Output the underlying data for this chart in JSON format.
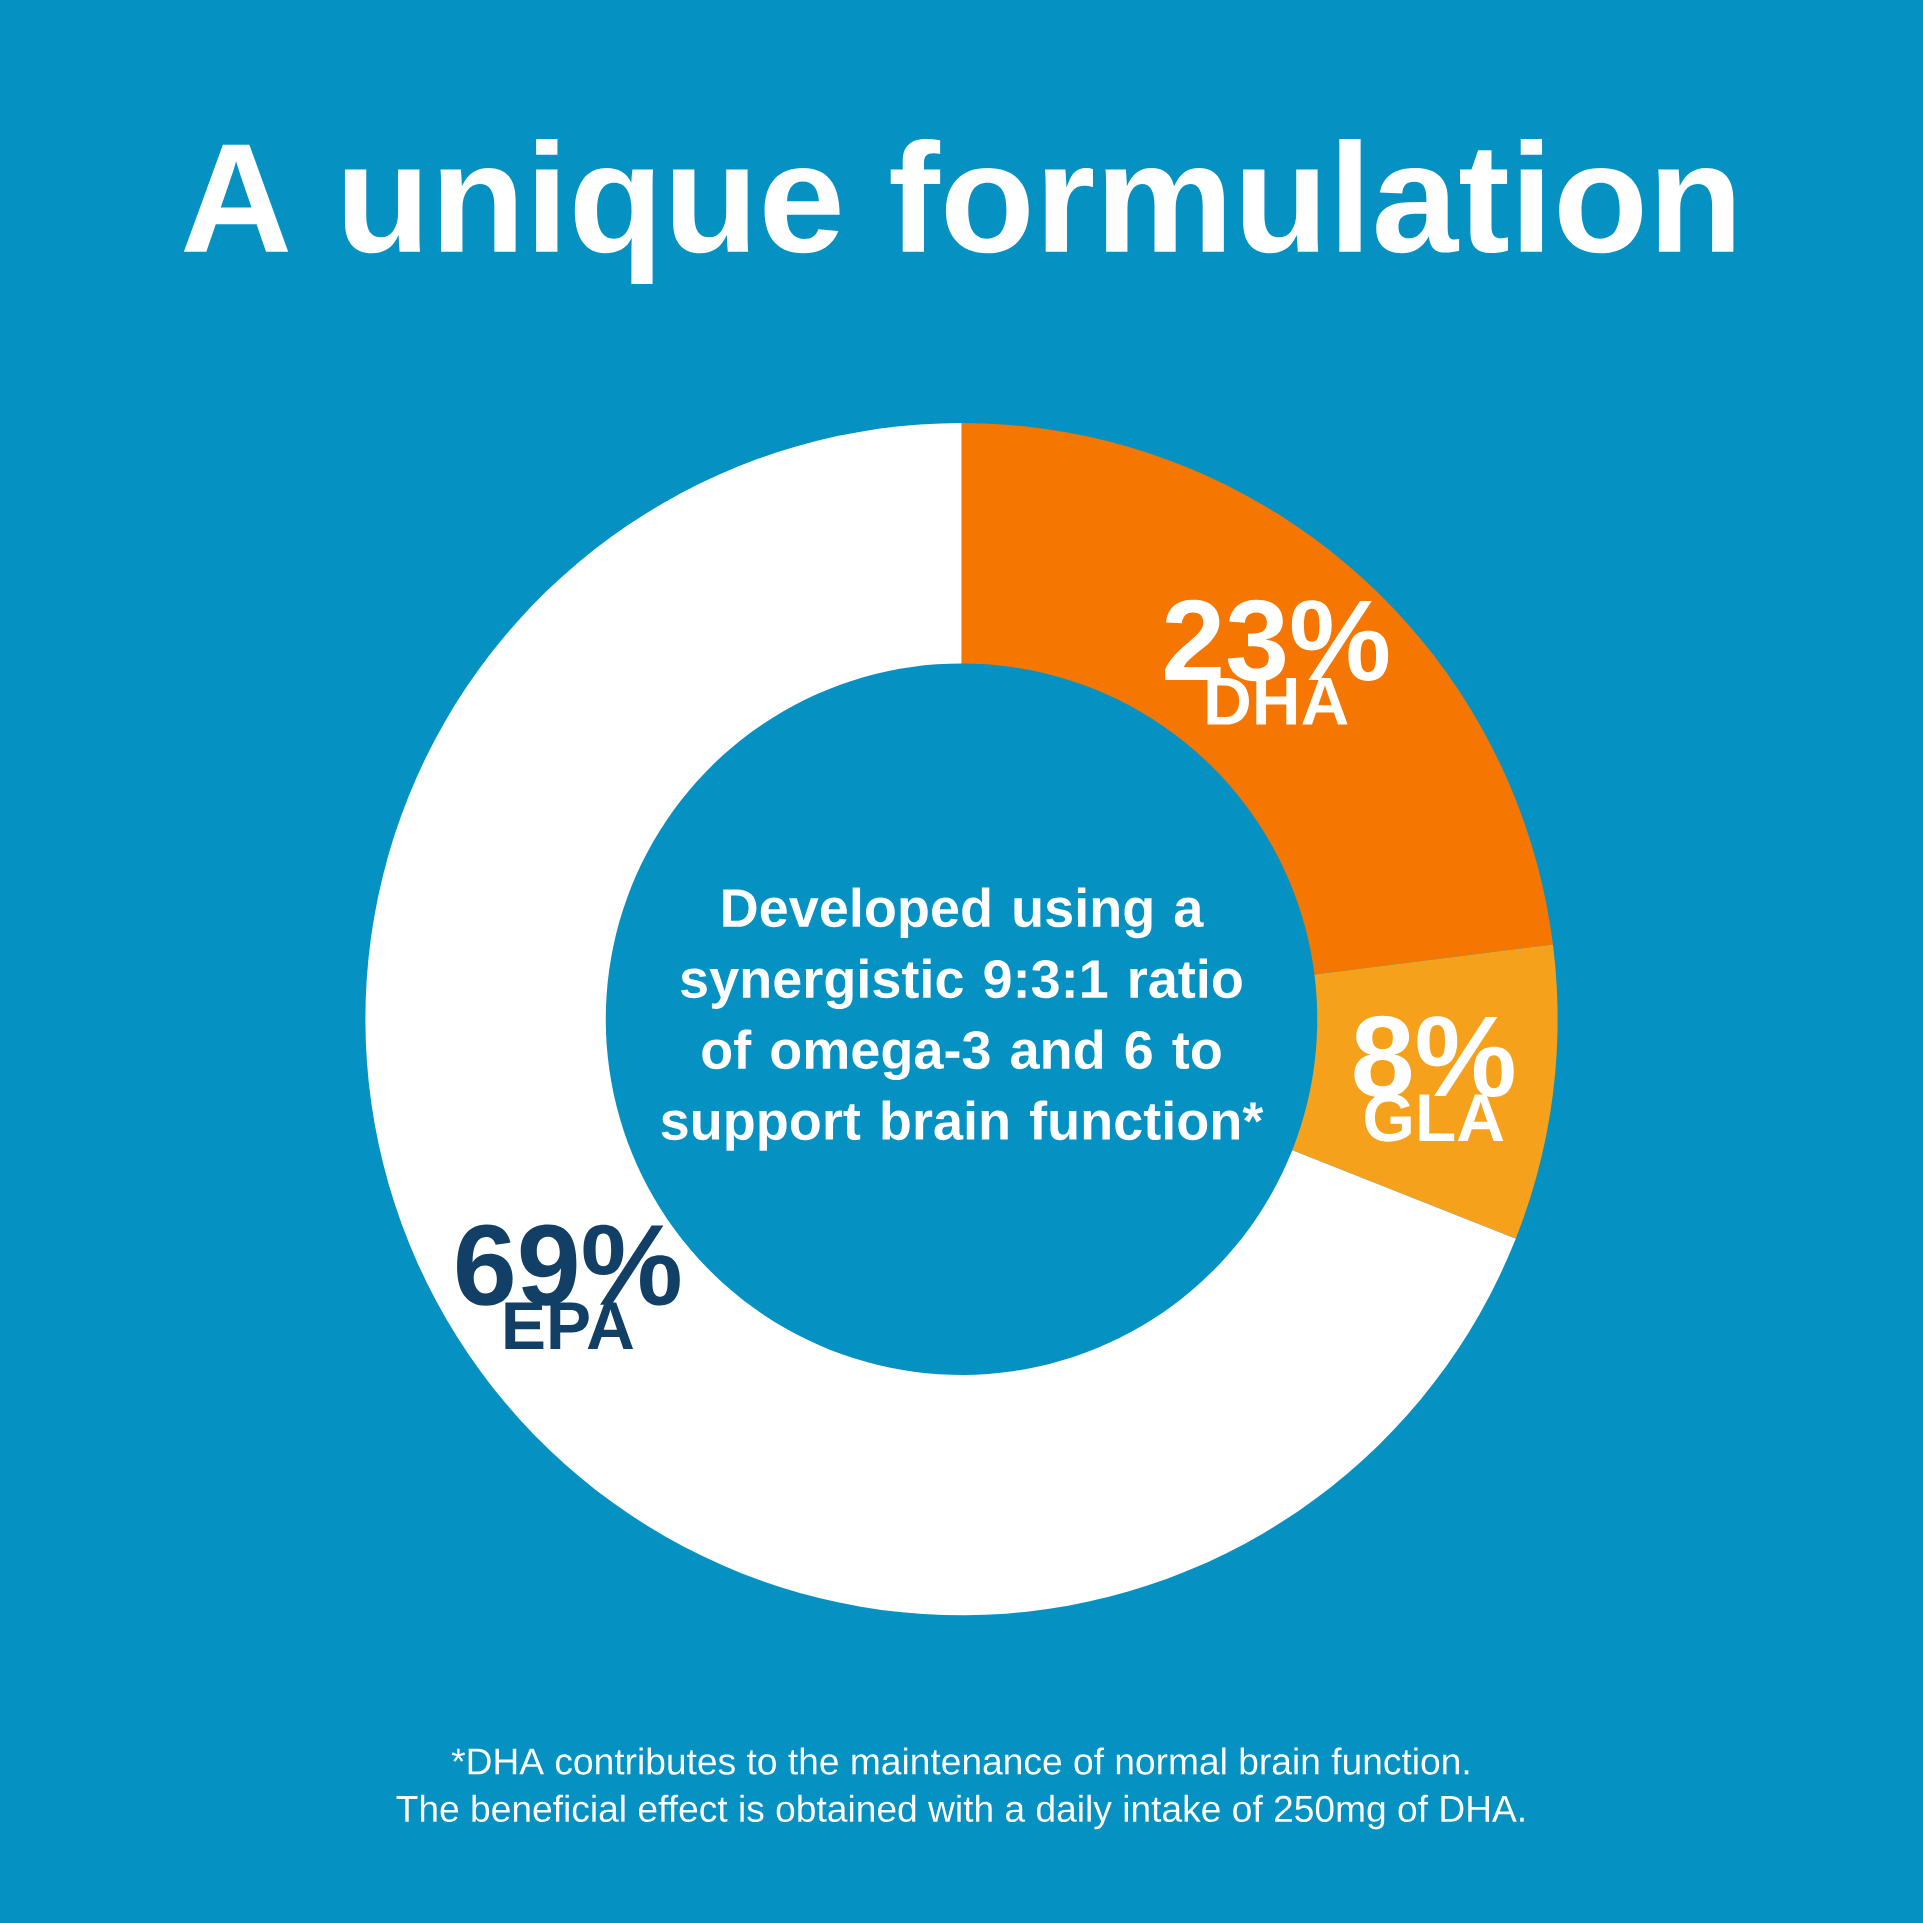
{
  "chart_data": {
    "type": "donut",
    "title": "A unique formulation",
    "categories": [
      "DHA",
      "GLA",
      "EPA"
    ],
    "values": [
      23,
      8,
      69
    ],
    "colors": [
      "#f57600",
      "#f5a11c",
      "#ffffff"
    ],
    "value_labels": [
      "23%",
      "8%",
      "69%"
    ],
    "annotations": [
      "Developed using a synergistic 9:3:1 ratio of omega-3 and 6 to support brain function*",
      "*DHA contributes to the maintenance of normal brain function.",
      "The beneficial effect is obtained with a daily intake of 250mg of DHA."
    ]
  }
}
